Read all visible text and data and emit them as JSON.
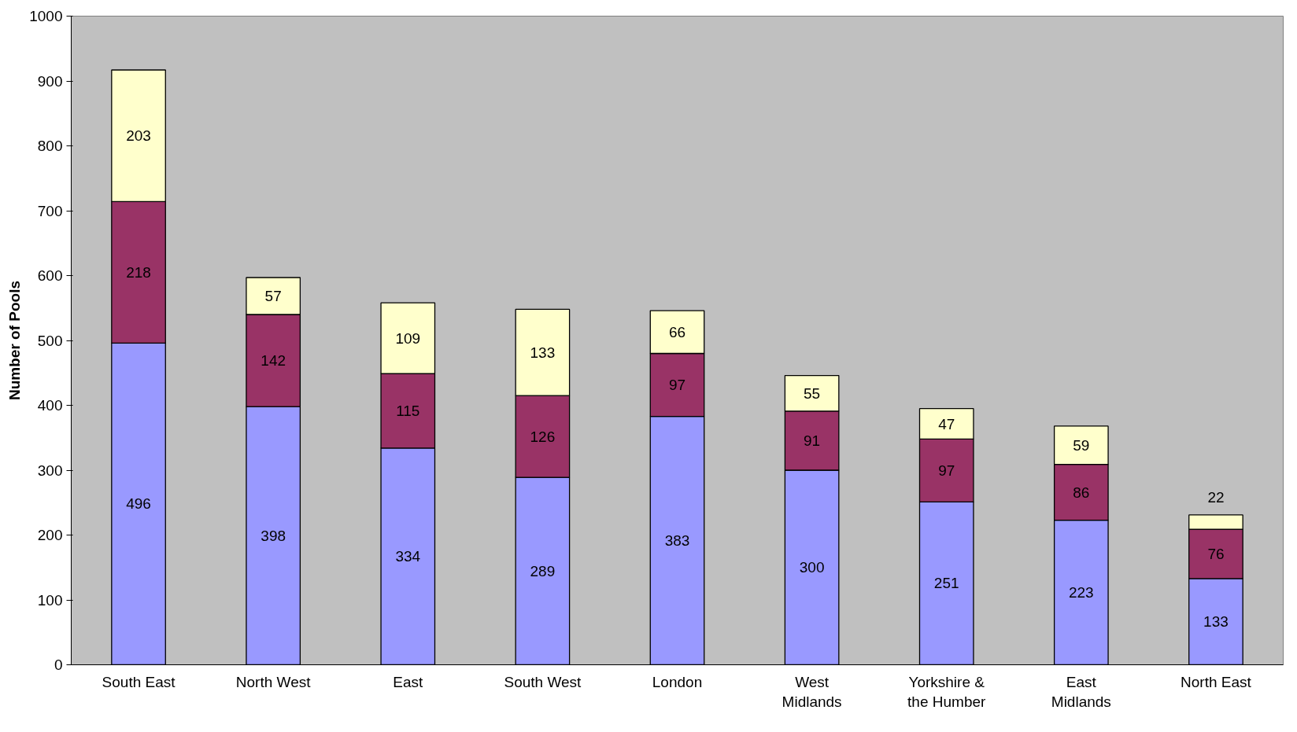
{
  "chart_data": {
    "type": "bar",
    "stacked": true,
    "ylabel": "Number of Pools",
    "categories": [
      "South East",
      "North West",
      "East",
      "South West",
      "London",
      "West\nMidlands",
      "Yorkshire &\nthe Humber",
      "East\nMidlands",
      "North East"
    ],
    "series": [
      {
        "color": "#9999ff",
        "values": [
          496,
          398,
          334,
          289,
          383,
          300,
          251,
          223,
          133
        ]
      },
      {
        "color": "#993366",
        "values": [
          218,
          142,
          115,
          126,
          97,
          91,
          97,
          86,
          76
        ]
      },
      {
        "color": "#ffffcc",
        "values": [
          203,
          57,
          109,
          133,
          66,
          55,
          47,
          59,
          22
        ]
      }
    ],
    "ylim": [
      0,
      1000
    ],
    "yticks": [
      0,
      100,
      200,
      300,
      400,
      500,
      600,
      700,
      800,
      900,
      1000
    ],
    "data_labels": true,
    "grid": false
  }
}
